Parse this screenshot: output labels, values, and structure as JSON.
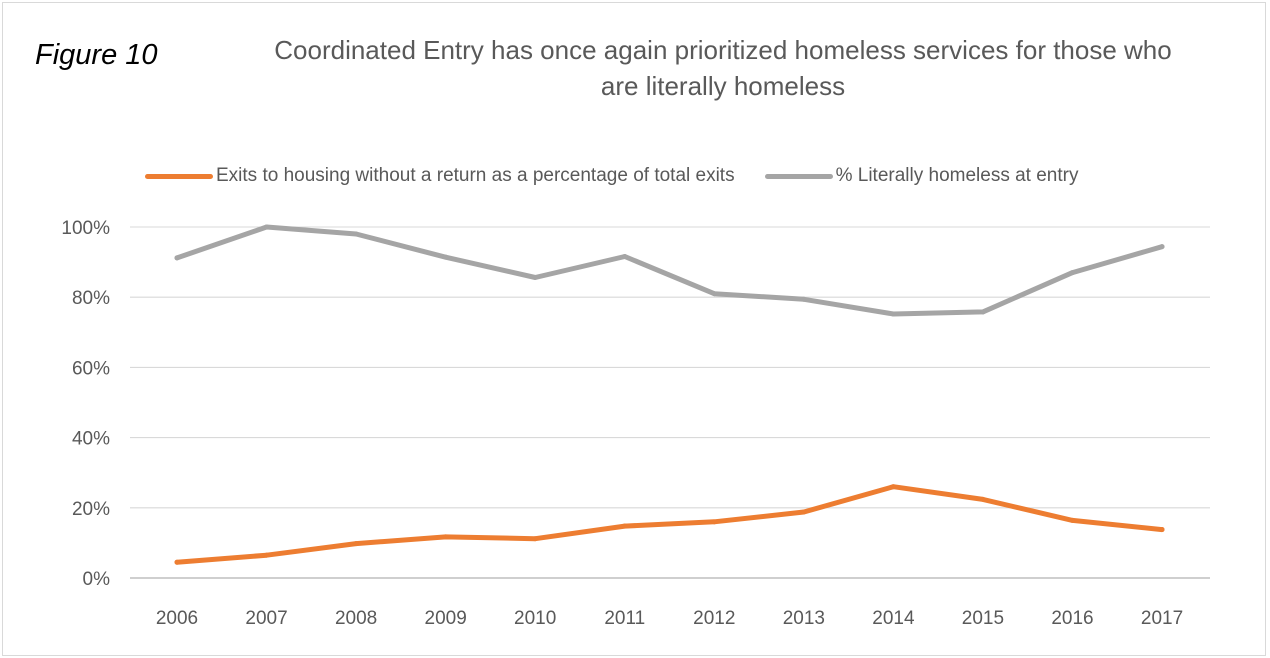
{
  "figure_label": "Figure 10",
  "chart_data": {
    "type": "line",
    "title": "Coordinated Entry has once again prioritized homeless services for those who are literally homeless",
    "title_lines": [
      "Coordinated Entry has once again prioritized homeless services for those who",
      "are literally homeless"
    ],
    "xlabel": "",
    "ylabel": "",
    "categories": [
      "2006",
      "2007",
      "2008",
      "2009",
      "2010",
      "2011",
      "2012",
      "2013",
      "2014",
      "2015",
      "2016",
      "2017"
    ],
    "ylim": [
      0,
      100
    ],
    "yticks": [
      0,
      20,
      40,
      60,
      80,
      100
    ],
    "ytick_labels": [
      "0%",
      "20%",
      "40%",
      "60%",
      "80%",
      "100%"
    ],
    "grid": true,
    "legend": "top",
    "series": [
      {
        "name": "Exits to housing without a return as a percentage of total exits",
        "color": "#ed7d31",
        "values": [
          4.5,
          6.5,
          9.8,
          11.7,
          11.2,
          14.8,
          16.0,
          18.8,
          26.0,
          22.4,
          16.4,
          13.8
        ]
      },
      {
        "name": "% Literally homeless at entry",
        "color": "#a5a5a5",
        "values": [
          91.2,
          100.0,
          98.0,
          91.4,
          85.6,
          91.6,
          81.0,
          79.4,
          75.2,
          75.8,
          87.0,
          94.4
        ]
      }
    ]
  }
}
